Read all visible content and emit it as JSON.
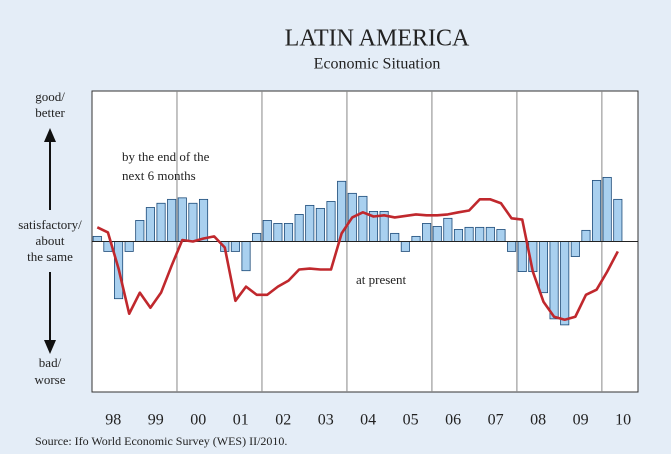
{
  "chart_data": {
    "type": "bar-line",
    "title": "LATIN AMERICA",
    "subtitle": "Economic Situation",
    "source": "Source: Ifo World Economic Survey (WES) II/2010.",
    "y_labels": {
      "top": [
        "good/",
        "better"
      ],
      "middle": [
        "satisfactory/",
        "about",
        "the same"
      ],
      "bottom": [
        "bad/",
        "worse"
      ]
    },
    "annotations": {
      "future": [
        "by the end of the",
        "next 6 months"
      ],
      "present": "at present"
    },
    "xlim": [
      1998,
      2010.85
    ],
    "ylim": [
      -5,
      5
    ],
    "xticks": [
      {
        "value": 1998.5,
        "label": "98"
      },
      {
        "value": 1999.5,
        "label": "99"
      },
      {
        "value": 2000.5,
        "label": "00"
      },
      {
        "value": 2001.5,
        "label": "01"
      },
      {
        "value": 2002.5,
        "label": "02"
      },
      {
        "value": 2003.5,
        "label": "03"
      },
      {
        "value": 2004.5,
        "label": "04"
      },
      {
        "value": 2005.5,
        "label": "05"
      },
      {
        "value": 2006.5,
        "label": "06"
      },
      {
        "value": 2007.5,
        "label": "07"
      },
      {
        "value": 2008.5,
        "label": "08"
      },
      {
        "value": 2009.5,
        "label": "09"
      },
      {
        "value": 2010.5,
        "label": "10"
      }
    ],
    "xgrid": [
      2000,
      2002,
      2004,
      2006,
      2008,
      2010
    ],
    "x": [
      1998.125,
      1998.375,
      1998.625,
      1998.875,
      1999.125,
      1999.375,
      1999.625,
      1999.875,
      2000.125,
      2000.375,
      2000.625,
      2000.875,
      2001.125,
      2001.375,
      2001.625,
      2001.875,
      2002.125,
      2002.375,
      2002.625,
      2002.875,
      2003.125,
      2003.375,
      2003.625,
      2003.875,
      2004.125,
      2004.375,
      2004.625,
      2004.875,
      2005.125,
      2005.375,
      2005.625,
      2005.875,
      2006.125,
      2006.375,
      2006.625,
      2006.875,
      2007.125,
      2007.375,
      2007.625,
      2007.875,
      2008.125,
      2008.375,
      2008.625,
      2008.875,
      2009.125,
      2009.375,
      2009.625,
      2009.875,
      2010.125,
      2010.375
    ],
    "series": [
      {
        "type": "bar",
        "color": "#a9d0ef",
        "stroke": "#1c4a78",
        "values": [
          0.17,
          -0.33,
          -1.9,
          -0.33,
          0.7,
          1.13,
          1.27,
          1.4,
          1.45,
          1.27,
          1.4,
          0,
          -0.33,
          -0.33,
          -0.97,
          0.27,
          0.7,
          0.6,
          0.6,
          0.9,
          1.2,
          1.1,
          1.33,
          2.0,
          1.6,
          1.5,
          1.0,
          1.0,
          0.27,
          -0.33,
          0.17,
          0.6,
          0.5,
          0.77,
          0.4,
          0.47,
          0.47,
          0.47,
          0.4,
          -0.33,
          -1.0,
          -1.0,
          -1.7,
          -2.57,
          -2.77,
          -0.5,
          0.37,
          2.03,
          2.13,
          1.4
        ]
      },
      {
        "type": "line",
        "color": "#c0282d",
        "values": [
          0.47,
          0.3,
          -0.9,
          -2.4,
          -1.7,
          -2.2,
          -1.7,
          -0.8,
          0.05,
          0,
          0.1,
          0.17,
          -0.2,
          -1.97,
          -1.5,
          -1.77,
          -1.77,
          -1.5,
          -1.3,
          -0.93,
          -0.9,
          -0.93,
          -0.93,
          0.27,
          0.8,
          0.97,
          0.83,
          0.87,
          0.8,
          0.85,
          0.9,
          0.87,
          0.87,
          0.9,
          0.97,
          1.03,
          1.4,
          1.4,
          1.27,
          0.77,
          0.73,
          -1.0,
          -2.0,
          -2.5,
          -2.6,
          -2.5,
          -1.77,
          -1.6,
          -1.0,
          -0.33
        ]
      }
    ]
  }
}
